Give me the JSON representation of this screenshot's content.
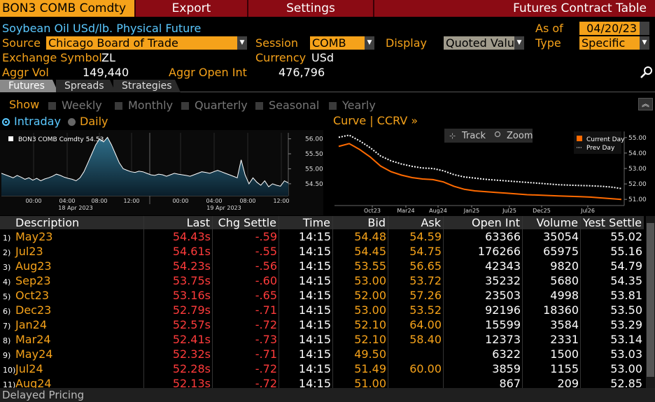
{
  "topbar": {
    "ticker": "BON3 COMB Comdty",
    "export_label": "Export",
    "settings_label": "Settings",
    "function_title": "Futures Contract Table"
  },
  "info": {
    "description": "Soybean Oil USd/lb. Physical Future",
    "source_label": "Source",
    "source_value": "Chicago Board of Trade",
    "session_label": "Session",
    "session_value": "COMB",
    "display_label": "Display",
    "display_value": "Quoted Value",
    "as_of_label": "As of",
    "as_of_value": "04/20/23",
    "type_label": "Type",
    "type_value": "Specific",
    "exchange_symbol_label": "Exchange Symbol",
    "exchange_symbol_value": "ZL",
    "currency_label": "Currency",
    "currency_value": "USd",
    "aggr_vol_label": "Aggr Vol",
    "aggr_vol_value": "149,440",
    "aggr_oi_label": "Aggr Open Int",
    "aggr_oi_value": "476,796"
  },
  "tabs": [
    "Futures",
    "Spreads",
    "Strategies"
  ],
  "show": {
    "label": "Show",
    "options": [
      "Weekly",
      "Monthly",
      "Quarterly",
      "Seasonal",
      "Yearly"
    ]
  },
  "chart_controls": {
    "intraday": "Intraday",
    "daily": "Daily",
    "curve_title": "Curve | CCRV »",
    "track": "Track",
    "zoom": "Zoom"
  },
  "chart_data": [
    {
      "type": "area",
      "legend": "BON3 COMB Comdty  54.53",
      "y_ticks": [
        "56.00",
        "55.50",
        "55.00",
        "54.50"
      ],
      "ylim": [
        54.1,
        56.2
      ],
      "x_ticks": [
        "00:00",
        "04:00",
        "08:00",
        "12:00",
        "00:00",
        "04:00",
        "08:00",
        "12:00"
      ],
      "day_labels": [
        "18 Apr 2023",
        "19 Apr 2023"
      ],
      "values": [
        54.85,
        54.8,
        54.75,
        54.7,
        54.78,
        54.72,
        54.65,
        54.7,
        54.62,
        54.68,
        54.6,
        54.66,
        54.7,
        54.75,
        54.82,
        54.78,
        54.72,
        54.68,
        54.65,
        54.6,
        54.7,
        54.9,
        55.2,
        55.5,
        55.8,
        56.0,
        55.9,
        56.05,
        55.8,
        55.5,
        55.2,
        55.0,
        54.95,
        54.9,
        54.88,
        54.92,
        54.9,
        54.85,
        54.8,
        54.78,
        54.82,
        54.8,
        54.75,
        54.8,
        54.85,
        54.82,
        54.8,
        54.78,
        54.75,
        54.8,
        54.85,
        54.9,
        54.88,
        54.85,
        54.9,
        54.95,
        54.9,
        54.85,
        54.8,
        54.75,
        54.7,
        55.3,
        54.8,
        54.5,
        54.7,
        54.55,
        54.45,
        54.6,
        54.4,
        54.5,
        54.45,
        54.42,
        54.6,
        54.53
      ]
    },
    {
      "type": "line",
      "x_ticks": [
        "Oct23",
        "Mar24",
        "Aug24",
        "Jan25",
        "Jul25",
        "Dec25",
        "Jul26"
      ],
      "y_ticks": [
        "55.00",
        "54.00",
        "53.00",
        "52.00",
        "51.00"
      ],
      "ylim": [
        50.6,
        55.4
      ],
      "series": [
        {
          "name": "Current Day",
          "values": [
            54.43,
            54.61,
            54.23,
            53.75,
            53.16,
            52.79,
            52.57,
            52.41,
            52.32,
            52.28,
            52.13,
            51.85,
            51.65,
            51.55,
            51.5,
            51.45,
            51.4,
            51.35,
            51.3,
            51.28,
            51.25,
            51.22,
            51.2,
            51.18,
            51.15,
            51.1,
            51.05,
            51.0
          ]
        },
        {
          "name": "Prev Day",
          "values": [
            55.02,
            55.16,
            54.79,
            54.35,
            53.81,
            53.5,
            53.29,
            53.14,
            53.03,
            53.0,
            52.85,
            52.6,
            52.45,
            52.38,
            52.3,
            52.25,
            52.2,
            52.15,
            52.1,
            52.05,
            52.0,
            51.95,
            51.92,
            51.9,
            51.88,
            51.85,
            51.8,
            51.7
          ]
        }
      ]
    }
  ],
  "table": {
    "headers": [
      "Description",
      "Last",
      "Chg Settle",
      "Time",
      "Bid",
      "Ask",
      "Open Int",
      "Volume",
      "Yest Settle"
    ],
    "rows": [
      {
        "n": "1)",
        "desc": "May23",
        "last": "54.43s",
        "chg": "-.59",
        "time": "14:15",
        "bid": "54.48",
        "ask": "54.59",
        "oi": "63366",
        "vol": "35054",
        "yest": "55.02"
      },
      {
        "n": "2)",
        "desc": "Jul23",
        "last": "54.61s",
        "chg": "-.55",
        "time": "14:15",
        "bid": "54.45",
        "ask": "54.75",
        "oi": "176266",
        "vol": "65975",
        "yest": "55.16"
      },
      {
        "n": "3)",
        "desc": "Aug23",
        "last": "54.23s",
        "chg": "-.56",
        "time": "14:15",
        "bid": "53.55",
        "ask": "56.65",
        "oi": "42343",
        "vol": "9820",
        "yest": "54.79"
      },
      {
        "n": "4)",
        "desc": "Sep23",
        "last": "53.75s",
        "chg": "-.60",
        "time": "14:15",
        "bid": "53.00",
        "ask": "53.72",
        "oi": "35232",
        "vol": "5680",
        "yest": "54.35"
      },
      {
        "n": "5)",
        "desc": "Oct23",
        "last": "53.16s",
        "chg": "-.65",
        "time": "14:15",
        "bid": "52.00",
        "ask": "57.26",
        "oi": "23503",
        "vol": "4998",
        "yest": "53.81"
      },
      {
        "n": "6)",
        "desc": "Dec23",
        "last": "52.79s",
        "chg": "-.71",
        "time": "14:15",
        "bid": "53.00",
        "ask": "53.52",
        "oi": "92196",
        "vol": "18360",
        "yest": "53.50"
      },
      {
        "n": "7)",
        "desc": "Jan24",
        "last": "52.57s",
        "chg": "-.72",
        "time": "14:15",
        "bid": "52.10",
        "ask": "64.00",
        "oi": "15599",
        "vol": "3584",
        "yest": "53.29"
      },
      {
        "n": "8)",
        "desc": "Mar24",
        "last": "52.41s",
        "chg": "-.73",
        "time": "14:15",
        "bid": "52.10",
        "ask": "58.40",
        "oi": "12373",
        "vol": "2331",
        "yest": "53.14"
      },
      {
        "n": "9)",
        "desc": "May24",
        "last": "52.32s",
        "chg": "-.71",
        "time": "14:15",
        "bid": "49.50",
        "ask": "",
        "oi": "6322",
        "vol": "1500",
        "yest": "53.03"
      },
      {
        "n": "10)",
        "desc": "Jul24",
        "last": "52.28s",
        "chg": "-.72",
        "time": "14:15",
        "bid": "51.49",
        "ask": "60.00",
        "oi": "3859",
        "vol": "1155",
        "yest": "53.00"
      },
      {
        "n": "11)",
        "desc": "Aug24",
        "last": "52.13s",
        "chg": "-.72",
        "time": "14:15",
        "bid": "51.00",
        "ask": "",
        "oi": "867",
        "vol": "209",
        "yest": "52.85"
      }
    ]
  },
  "footer": "Delayed Pricing",
  "colors": {
    "accent": "#f5a21a",
    "red_bar": "#8b0b14",
    "negative": "#ff3b3b",
    "current_curve": "#ff6a00"
  }
}
